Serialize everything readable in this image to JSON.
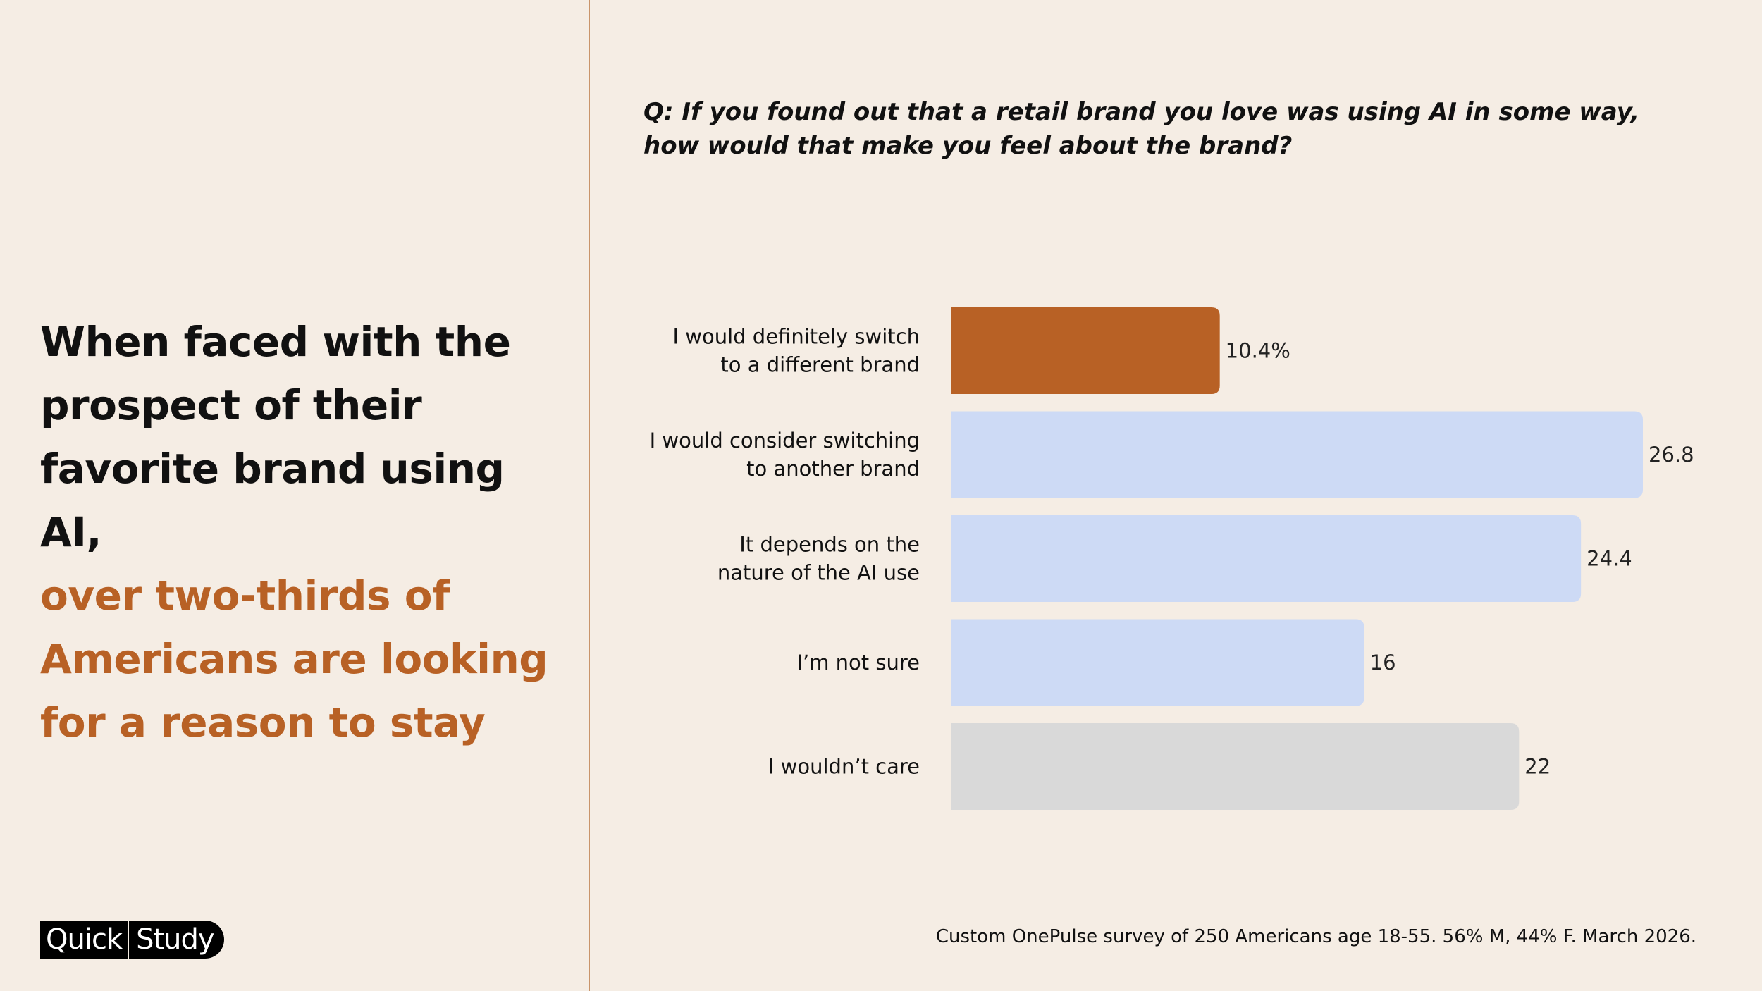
{
  "headline": {
    "line1": "When faced with the",
    "line2": "prospect of their",
    "line3": "favorite brand using AI,",
    "accent_line1": "over two-thirds of",
    "accent_line2": "Americans are looking",
    "accent_line3": "for a reason to stay"
  },
  "logo": {
    "word1": "Quick",
    "word2": "Study"
  },
  "question": "Q: If you found out that a retail brand you love was using AI in some way, how would that make you feel about the brand?",
  "footnote": "Custom OnePulse survey of 250 Americans age 18-55. 56% M, 44% F. March 2026.",
  "colors": {
    "background": "#f5ede4",
    "accent": "#b86125",
    "bar_switch": "#b86125",
    "bar_consider": "#cddaf5",
    "bar_neutral": "#d9d9d9",
    "divider": "#c9946a"
  },
  "chart_data": {
    "type": "bar",
    "orientation": "horizontal",
    "categories": [
      [
        "I would definitely switch",
        "to a different brand"
      ],
      [
        "I would consider switching",
        "to another brand"
      ],
      [
        "It depends on the",
        "nature of the AI use"
      ],
      [
        "I’m not sure"
      ],
      [
        "I wouldn’t care"
      ]
    ],
    "values": [
      10.4,
      26.8,
      24.4,
      16,
      22
    ],
    "value_labels": [
      "10.4%",
      "26.8",
      "24.4",
      "16",
      "22"
    ],
    "bar_colors": [
      "#b86125",
      "#cddaf5",
      "#cddaf5",
      "#cddaf5",
      "#d9d9d9"
    ],
    "xlim": [
      0,
      26.8
    ],
    "unit": "%",
    "grid": false,
    "legend": "none"
  }
}
